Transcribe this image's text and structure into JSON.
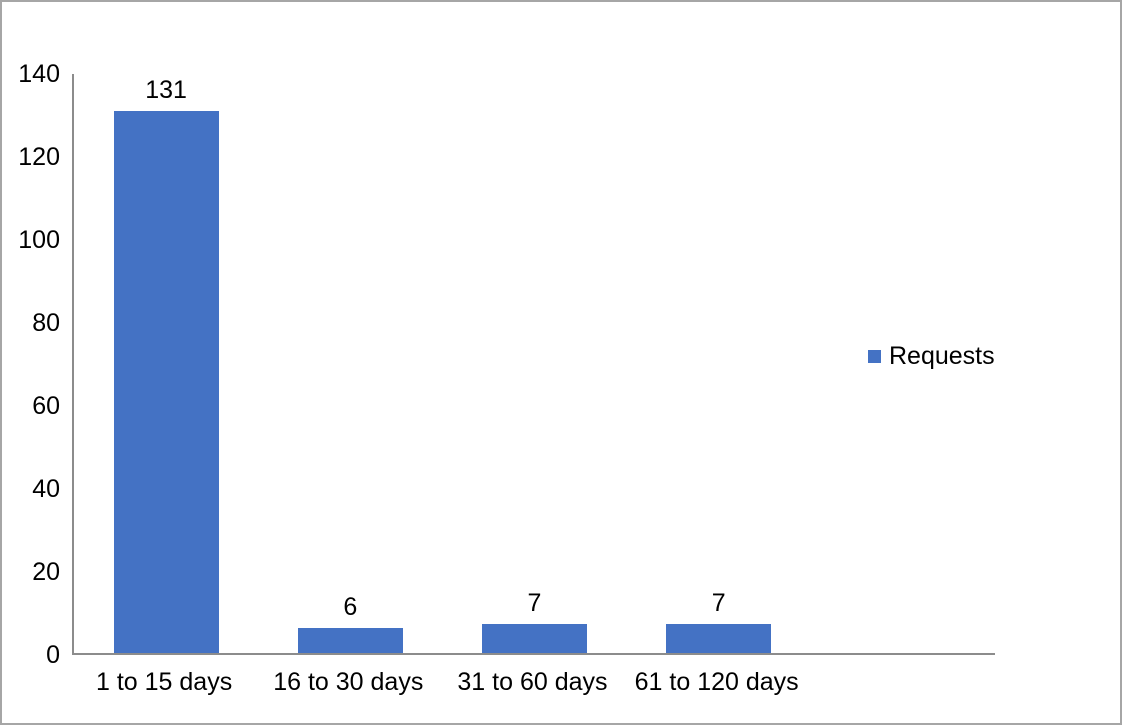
{
  "chart_data": {
    "type": "bar",
    "title": "",
    "categories": [
      "1 to 15 days",
      "16 to 30 days",
      "31 to 60 days",
      "61 to 120 days"
    ],
    "values": [
      131,
      6,
      7,
      7
    ],
    "data_labels": [
      "131",
      "6",
      "7",
      "7"
    ],
    "series_name": "Requests",
    "xlabel": "",
    "ylabel": "",
    "ylim": [
      0,
      140
    ],
    "ytick_interval": 20,
    "yticks_top_to_bottom": [
      "140",
      "120",
      "100",
      "80",
      "60",
      "40",
      "20",
      "0"
    ],
    "grid": false,
    "legend_position": "right-middle",
    "num_category_slots": 5,
    "colors": {
      "bar": "#4472c4",
      "axis_line": "#8c8c8c",
      "text": "#000000",
      "frame_border": "#a6a6a6",
      "background": "#ffffff"
    }
  },
  "legend": {
    "label": "Requests",
    "swatch_color": "#4472c4"
  }
}
